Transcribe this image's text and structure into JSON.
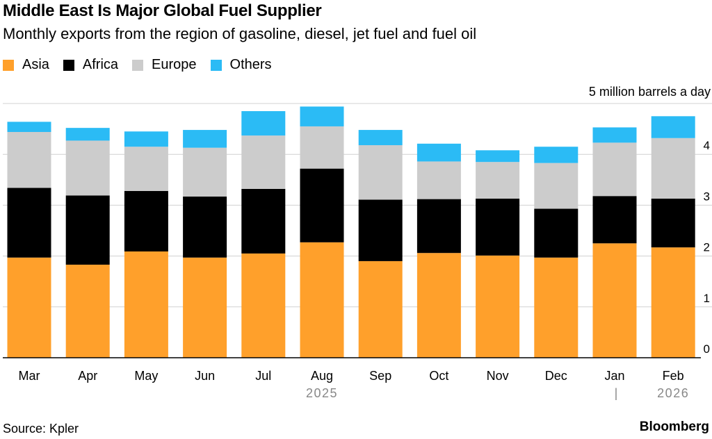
{
  "header": {
    "title": "Middle East Is Major Global Fuel Supplier",
    "subtitle": "Monthly exports from the region of gasoline, diesel, jet fuel and fuel oil"
  },
  "legend": [
    {
      "label": "Asia",
      "color": "#FFA02B"
    },
    {
      "label": "Africa",
      "color": "#000000"
    },
    {
      "label": "Europe",
      "color": "#CCCCCC"
    },
    {
      "label": "Others",
      "color": "#2BBBF5"
    }
  ],
  "unit_label": "5 million barrels a day",
  "footer": {
    "source": "Source: Kpler",
    "brand": "Bloomberg"
  },
  "chart_data": {
    "type": "bar",
    "stacked": true,
    "categories": [
      "Mar",
      "Apr",
      "May",
      "Jun",
      "Jul",
      "Aug",
      "Sep",
      "Oct",
      "Nov",
      "Dec",
      "Jan",
      "Feb"
    ],
    "year_labels": [
      {
        "label": "2025",
        "under": "Aug"
      },
      {
        "label": "2026",
        "under": "Feb"
      }
    ],
    "year_separator": "|",
    "series": [
      {
        "name": "Asia",
        "color": "#FFA02B",
        "values": [
          1.97,
          1.83,
          2.09,
          1.97,
          2.05,
          2.27,
          1.9,
          2.06,
          2.01,
          1.97,
          2.25,
          2.17
        ]
      },
      {
        "name": "Africa",
        "color": "#000000",
        "values": [
          1.37,
          1.36,
          1.19,
          1.2,
          1.27,
          1.45,
          1.21,
          1.06,
          1.12,
          0.96,
          0.93,
          0.96
        ]
      },
      {
        "name": "Europe",
        "color": "#CCCCCC",
        "values": [
          1.1,
          1.08,
          0.87,
          0.96,
          1.05,
          0.83,
          1.07,
          0.74,
          0.72,
          0.9,
          1.05,
          1.19
        ]
      },
      {
        "name": "Others",
        "color": "#2BBBF5",
        "values": [
          0.2,
          0.25,
          0.3,
          0.35,
          0.48,
          0.39,
          0.3,
          0.35,
          0.23,
          0.32,
          0.3,
          0.43
        ]
      }
    ],
    "yticks": [
      0,
      1,
      2,
      3,
      4
    ],
    "ylim": [
      0,
      5
    ],
    "grid": true,
    "axis_side": "right",
    "legend_position": "top-left"
  }
}
